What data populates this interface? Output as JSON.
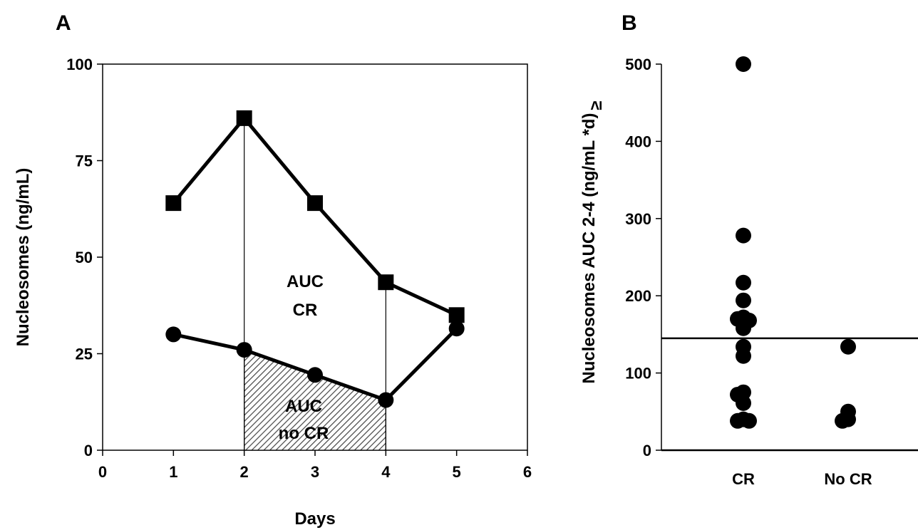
{
  "panels": {
    "a": {
      "letter": "A"
    },
    "b": {
      "letter": "B"
    }
  },
  "chart_data": [
    {
      "type": "line",
      "title": "",
      "xlabel": "Days",
      "ylabel": "Nucleosomes (ng/mL)",
      "xlim": [
        0,
        6
      ],
      "ylim": [
        0,
        100
      ],
      "xticks": [
        "0",
        "1",
        "2",
        "3",
        "4",
        "5",
        "6"
      ],
      "yticks": [
        "0",
        "25",
        "50",
        "75",
        "100"
      ],
      "grid": false,
      "series": [
        {
          "marker": "square",
          "x": [
            1,
            2,
            3,
            4,
            5
          ],
          "y": [
            64,
            86,
            64,
            43.5,
            35
          ]
        },
        {
          "marker": "circle",
          "x": [
            1,
            2,
            3,
            4,
            5
          ],
          "y": [
            30,
            26,
            19.5,
            13,
            31.5
          ]
        }
      ],
      "annotations": {
        "auc_cr": [
          "AUC",
          "CR"
        ],
        "auc_no_cr": [
          "AUC",
          "no CR"
        ]
      },
      "shaded_region": {
        "x": [
          2,
          4
        ],
        "under_series": 1
      }
    },
    {
      "type": "scatter",
      "title": "",
      "xlabel": "",
      "ylabel": "Nucleosomes AUC 2-4 (ng/mL *d)",
      "ylabel_suffix": "≥",
      "categories": [
        "CR",
        "No CR"
      ],
      "ylim": [
        0,
        500
      ],
      "yticks": [
        "0",
        "100",
        "200",
        "300",
        "400",
        "500"
      ],
      "grid": false,
      "groups": [
        {
          "category": "CR",
          "values": [
            500,
            278,
            217,
            194,
            172,
            170,
            168,
            158,
            134,
            122,
            75,
            72,
            61,
            40,
            38,
            38
          ]
        },
        {
          "category": "No CR",
          "values": [
            134,
            50,
            40,
            38
          ]
        }
      ],
      "cutoff": 145
    }
  ]
}
